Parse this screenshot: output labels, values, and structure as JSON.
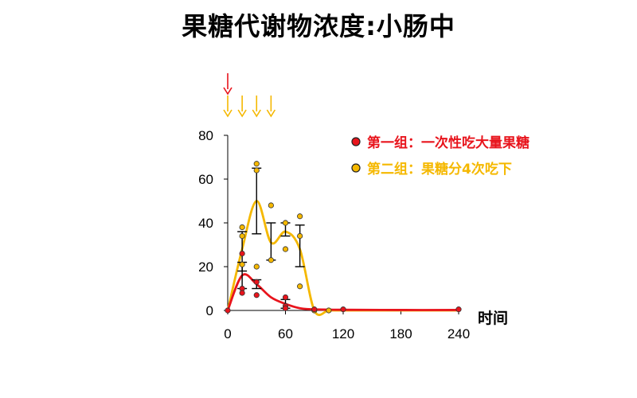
{
  "title": "果糖代谢物浓度:小肠中",
  "chart_data": {
    "type": "line",
    "xlabel": "时间",
    "ylabel": "",
    "xlim": [
      0,
      240
    ],
    "ylim": [
      0,
      80
    ],
    "x_ticks": [
      0,
      60,
      120,
      180,
      240
    ],
    "y_ticks": [
      0,
      20,
      40,
      60,
      80
    ],
    "dose_arrows": {
      "group1": {
        "x": [
          0
        ],
        "color": "#e8141c"
      },
      "group2": {
        "x": [
          0,
          15,
          30,
          45
        ],
        "color": "#f5b800"
      }
    },
    "series": [
      {
        "name": "第一组：一次性吃大量果糖",
        "color": "#e8141c",
        "curve": [
          [
            0,
            0
          ],
          [
            15,
            16
          ],
          [
            30,
            12
          ],
          [
            45,
            6
          ],
          [
            60,
            3
          ],
          [
            75,
            1
          ],
          [
            90,
            0.5
          ],
          [
            120,
            0.3
          ],
          [
            180,
            0.2
          ],
          [
            240,
            0.2
          ]
        ],
        "means": [
          [
            0,
            0
          ],
          [
            15,
            16
          ],
          [
            30,
            12
          ],
          [
            60,
            3
          ],
          [
            90,
            0.5
          ],
          [
            120,
            0.3
          ],
          [
            240,
            0.2
          ]
        ],
        "error_bars": [
          [
            15,
            10,
            22
          ],
          [
            30,
            10,
            14
          ],
          [
            60,
            1,
            5
          ]
        ],
        "points": [
          [
            0,
            0
          ],
          [
            15,
            26
          ],
          [
            15,
            10
          ],
          [
            15,
            8
          ],
          [
            30,
            13
          ],
          [
            30,
            7
          ],
          [
            60,
            6
          ],
          [
            60,
            2
          ],
          [
            60,
            1
          ],
          [
            90,
            0.5
          ],
          [
            120,
            0.5
          ],
          [
            240,
            0.5
          ]
        ]
      },
      {
        "name": "第二组：果糖分4次吃下",
        "color": "#f5b800",
        "curve": [
          [
            0,
            0
          ],
          [
            15,
            28
          ],
          [
            30,
            50
          ],
          [
            45,
            31
          ],
          [
            60,
            36
          ],
          [
            75,
            28
          ],
          [
            90,
            0
          ],
          [
            105,
            0
          ],
          [
            120,
            0
          ],
          [
            180,
            0
          ],
          [
            240,
            0
          ]
        ],
        "means": [
          [
            0,
            0
          ],
          [
            15,
            28
          ],
          [
            30,
            50
          ],
          [
            45,
            31
          ],
          [
            60,
            36
          ],
          [
            75,
            29
          ],
          [
            90,
            0.5
          ],
          [
            105,
            0
          ]
        ],
        "error_bars": [
          [
            15,
            18,
            36
          ],
          [
            30,
            35,
            65
          ],
          [
            45,
            23,
            40
          ],
          [
            60,
            34,
            40
          ],
          [
            75,
            20,
            39
          ]
        ],
        "points": [
          [
            15,
            38
          ],
          [
            15,
            34
          ],
          [
            15,
            21
          ],
          [
            30,
            67
          ],
          [
            30,
            64
          ],
          [
            30,
            20
          ],
          [
            45,
            48
          ],
          [
            45,
            23
          ],
          [
            60,
            40
          ],
          [
            60,
            28
          ],
          [
            75,
            43
          ],
          [
            75,
            34
          ],
          [
            75,
            11
          ],
          [
            90,
            0
          ],
          [
            105,
            0
          ]
        ]
      }
    ]
  }
}
